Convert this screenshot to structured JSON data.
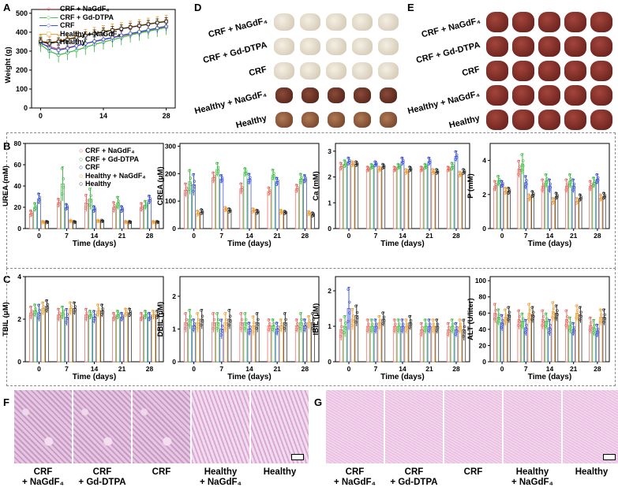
{
  "panels": {
    "A": "A",
    "B": "B",
    "C": "C",
    "D": "D",
    "E": "E",
    "F": "F",
    "G": "G"
  },
  "colors": {
    "crf_nagdf4": "#e8605a",
    "crf_gddtpa": "#34b83a",
    "crf": "#2b45d4",
    "healthy_nagdf4": "#f09a2a",
    "healthy": "#222222"
  },
  "legend_groups": [
    "CRF + NaGdF₄",
    "CRF + Gd-DTPA",
    "CRF",
    "Healthy + NaGdF₄",
    "Healthy"
  ],
  "chart_data": [
    {
      "id": "A",
      "type": "line",
      "ylabel": "Weight (g)",
      "xlabel": "",
      "xticks": [
        0,
        14,
        28
      ],
      "yticks": [
        0,
        100,
        200,
        300,
        400,
        500
      ],
      "xlim": [
        -2,
        30
      ],
      "ylim": [
        0,
        520
      ],
      "x": [
        0,
        2,
        4,
        6,
        8,
        10,
        12,
        14,
        16,
        18,
        20,
        22,
        24,
        26,
        28
      ],
      "series": [
        {
          "name": "CRF + NaGdF₄",
          "values": [
            340,
            325,
            310,
            318,
            330,
            340,
            350,
            360,
            370,
            380,
            390,
            400,
            410,
            420,
            430
          ],
          "err": 25
        },
        {
          "name": "CRF + Gd-DTPA",
          "values": [
            335,
            300,
            280,
            292,
            305,
            320,
            335,
            348,
            360,
            372,
            385,
            395,
            405,
            415,
            425
          ],
          "err": 40
        },
        {
          "name": "CRF",
          "values": [
            345,
            318,
            305,
            315,
            328,
            340,
            352,
            362,
            372,
            383,
            393,
            402,
            412,
            422,
            432
          ],
          "err": 25
        },
        {
          "name": "Healthy + NaGdF₄",
          "values": [
            355,
            345,
            355,
            365,
            375,
            385,
            395,
            405,
            413,
            420,
            428,
            436,
            444,
            452,
            460
          ],
          "err": 30
        },
        {
          "name": "Healthy",
          "values": [
            350,
            340,
            350,
            360,
            372,
            382,
            392,
            402,
            410,
            418,
            426,
            434,
            442,
            450,
            456
          ],
          "err": 20
        }
      ]
    },
    {
      "id": "UREA",
      "type": "bar",
      "ylabel": "UREA (mM)",
      "xlabel": "Time (days)",
      "categories": [
        "0",
        "7",
        "14",
        "21",
        "28"
      ],
      "yticks": [
        0,
        20,
        40,
        60,
        80
      ],
      "ylim": [
        0,
        80
      ],
      "series": [
        [
          14,
          24,
          24,
          20,
          20
        ],
        [
          20,
          42,
          28,
          24,
          22
        ],
        [
          28,
          20,
          18,
          18,
          27
        ],
        [
          6,
          7,
          7,
          6,
          6
        ],
        [
          6,
          6,
          7,
          6,
          6
        ]
      ],
      "err": [
        [
          3,
          4,
          8,
          5,
          4
        ],
        [
          4,
          16,
          10,
          6,
          4
        ],
        [
          5,
          3,
          3,
          3,
          4
        ],
        [
          1,
          1,
          1,
          1,
          1
        ],
        [
          1,
          1,
          1,
          1,
          1
        ]
      ]
    },
    {
      "id": "CREA",
      "type": "bar",
      "ylabel": "CREA (μM)",
      "xlabel": "Time (days)",
      "categories": [
        "0",
        "7",
        "14",
        "21",
        "28"
      ],
      "yticks": [
        0,
        100,
        200,
        300
      ],
      "ylim": [
        0,
        310
      ],
      "series": [
        [
          140,
          185,
          145,
          135,
          145
        ],
        [
          170,
          215,
          205,
          195,
          180
        ],
        [
          160,
          180,
          180,
          170,
          180
        ],
        [
          55,
          70,
          65,
          60,
          55
        ],
        [
          60,
          65,
          60,
          58,
          50
        ]
      ],
      "err": [
        [
          25,
          20,
          20,
          15,
          15
        ],
        [
          45,
          25,
          15,
          20,
          20
        ],
        [
          40,
          15,
          20,
          15,
          15
        ],
        [
          10,
          8,
          8,
          8,
          8
        ],
        [
          10,
          8,
          8,
          6,
          8
        ]
      ]
    },
    {
      "id": "Ca",
      "type": "bar",
      "ylabel": "Ca (mM)",
      "xlabel": "Time (days)",
      "categories": [
        "0",
        "7",
        "14",
        "21",
        "28"
      ],
      "yticks": [
        0,
        1,
        2,
        3
      ],
      "ylim": [
        0,
        3.3
      ],
      "series": [
        [
          2.4,
          2.3,
          2.3,
          2.3,
          2.3
        ],
        [
          2.5,
          2.4,
          2.4,
          2.4,
          2.4
        ],
        [
          2.6,
          2.5,
          2.6,
          2.6,
          2.8
        ],
        [
          2.5,
          2.3,
          2.2,
          2.2,
          2.1
        ],
        [
          2.5,
          2.4,
          2.3,
          2.2,
          2.2
        ]
      ],
      "err": [
        [
          0.15,
          0.1,
          0.1,
          0.1,
          0.1
        ],
        [
          0.15,
          0.1,
          0.1,
          0.1,
          0.15
        ],
        [
          0.15,
          0.1,
          0.15,
          0.15,
          0.2
        ],
        [
          0.1,
          0.1,
          0.1,
          0.1,
          0.1
        ],
        [
          0.1,
          0.1,
          0.1,
          0.1,
          0.1
        ]
      ]
    },
    {
      "id": "P",
      "type": "bar",
      "ylabel": "P (mM)",
      "xlabel": "Time (days)",
      "categories": [
        "0",
        "7",
        "14",
        "21",
        "28"
      ],
      "yticks": [
        0,
        2,
        4
      ],
      "ylim": [
        0,
        5
      ],
      "series": [
        [
          2.5,
          3.5,
          2.5,
          2.5,
          2.5
        ],
        [
          2.8,
          3.8,
          2.8,
          2.8,
          2.7
        ],
        [
          2.6,
          2.7,
          2.5,
          2.5,
          2.9
        ],
        [
          2.2,
          1.8,
          1.6,
          1.6,
          1.8
        ],
        [
          2.2,
          2.0,
          1.9,
          1.8,
          1.9
        ]
      ],
      "err": [
        [
          0.3,
          0.5,
          0.4,
          0.4,
          0.3
        ],
        [
          0.3,
          0.6,
          0.4,
          0.4,
          0.3
        ],
        [
          0.2,
          0.4,
          0.4,
          0.4,
          0.3
        ],
        [
          0.2,
          0.2,
          0.2,
          0.2,
          0.2
        ],
        [
          0.2,
          0.2,
          0.2,
          0.2,
          0.2
        ]
      ]
    },
    {
      "id": "TBIL",
      "type": "bar",
      "ylabel": "TBIL (μM)",
      "xlabel": "Time (days)",
      "categories": [
        "0",
        "7",
        "14",
        "21",
        "28"
      ],
      "yticks": [
        0,
        2,
        4
      ],
      "ylim": [
        0,
        4
      ],
      "series": [
        [
          2.3,
          2.2,
          2.2,
          2.1,
          2.1
        ],
        [
          2.4,
          2.3,
          2.2,
          2.2,
          2.2
        ],
        [
          2.3,
          2.1,
          2.1,
          2.1,
          2.1
        ],
        [
          2.5,
          2.5,
          2.4,
          2.3,
          2.2
        ],
        [
          2.6,
          2.5,
          2.4,
          2.3,
          2.2
        ]
      ],
      "err": [
        [
          0.3,
          0.3,
          0.3,
          0.2,
          0.2
        ],
        [
          0.3,
          0.3,
          0.2,
          0.2,
          0.2
        ],
        [
          0.4,
          0.4,
          0.3,
          0.2,
          0.2
        ],
        [
          0.3,
          0.3,
          0.3,
          0.2,
          0.2
        ],
        [
          0.3,
          0.3,
          0.3,
          0.2,
          0.2
        ]
      ]
    },
    {
      "id": "DBIL",
      "type": "bar",
      "ylabel": "DBIL (μM)",
      "xlabel": "Time (days)",
      "categories": [
        "0",
        "7",
        "14",
        "21",
        "28"
      ],
      "yticks": [
        0,
        1,
        2
      ],
      "ylim": [
        0,
        2.6
      ],
      "series": [
        [
          1.2,
          1.2,
          1.2,
          1.1,
          1.1
        ],
        [
          1.3,
          1.2,
          1.2,
          1.1,
          1.2
        ],
        [
          1.1,
          1.0,
          1.0,
          1.0,
          1.1
        ],
        [
          1.2,
          1.2,
          1.1,
          1.1,
          1.2
        ],
        [
          1.3,
          1.3,
          1.2,
          1.2,
          1.2
        ]
      ],
      "err": [
        [
          0.3,
          0.3,
          0.3,
          0.2,
          0.2
        ],
        [
          0.3,
          0.3,
          0.3,
          0.2,
          0.3
        ],
        [
          0.2,
          0.3,
          0.2,
          0.2,
          0.2
        ],
        [
          0.3,
          0.3,
          0.3,
          0.2,
          0.2
        ],
        [
          0.3,
          0.3,
          0.3,
          0.3,
          0.3
        ]
      ]
    },
    {
      "id": "IBIL",
      "type": "bar",
      "ylabel": "IBIL (μM)",
      "xlabel": "Time (days)",
      "categories": [
        "0",
        "7",
        "14",
        "21",
        "28"
      ],
      "yticks": [
        0,
        1,
        2
      ],
      "ylim": [
        0,
        2.4
      ],
      "series": [
        [
          0.9,
          1.0,
          1.0,
          0.9,
          0.9
        ],
        [
          1.0,
          1.0,
          1.0,
          1.0,
          1.0
        ],
        [
          1.5,
          1.0,
          1.0,
          1.0,
          0.9
        ],
        [
          1.2,
          1.1,
          1.0,
          1.0,
          1.0
        ],
        [
          1.3,
          1.2,
          1.1,
          1.0,
          0.9
        ]
      ],
      "err": [
        [
          0.3,
          0.2,
          0.2,
          0.2,
          0.2
        ],
        [
          0.3,
          0.2,
          0.2,
          0.2,
          0.2
        ],
        [
          0.6,
          0.2,
          0.2,
          0.2,
          0.2
        ],
        [
          0.3,
          0.2,
          0.2,
          0.2,
          0.2
        ],
        [
          0.3,
          0.2,
          0.2,
          0.2,
          0.3
        ]
      ]
    },
    {
      "id": "ALT",
      "type": "bar",
      "ylabel": "ALT (U/liter)",
      "xlabel": "Time (days)",
      "categories": [
        "0",
        "7",
        "14",
        "21",
        "28"
      ],
      "yticks": [
        0,
        20,
        40,
        60,
        80,
        100
      ],
      "ylim": [
        0,
        105
      ],
      "series": [
        [
          60,
          52,
          52,
          52,
          45
        ],
        [
          55,
          50,
          50,
          45,
          42
        ],
        [
          48,
          42,
          42,
          40,
          38
        ],
        [
          55,
          60,
          62,
          60,
          55
        ],
        [
          58,
          58,
          60,
          58,
          55
        ]
      ],
      "err": [
        [
          12,
          12,
          12,
          12,
          10
        ],
        [
          10,
          10,
          10,
          10,
          10
        ],
        [
          10,
          10,
          10,
          8,
          8
        ],
        [
          10,
          12,
          12,
          10,
          10
        ],
        [
          10,
          10,
          10,
          10,
          10
        ]
      ]
    }
  ],
  "D": {
    "rows": [
      "CRF + NaGdF₄",
      "CRF + Gd-DTPA",
      "CRF",
      "Healthy + NaGdF₄",
      "Healthy"
    ]
  },
  "E": {
    "rows": [
      "CRF + NaGdF₄",
      "CRF + Gd-DTPA",
      "CRF",
      "Healthy + NaGdF₄",
      "Healthy"
    ]
  },
  "F": {
    "captions": [
      "CRF\n+ NaGdF₄",
      "CRF\n+ Gd-DTPA",
      "CRF",
      "Healthy\n+ NaGdF₄",
      "Healthy"
    ]
  },
  "G": {
    "captions": [
      "CRF\n+ NaGdF₄",
      "CRF\n+ Gd-DTPA",
      "CRF",
      "Healthy\n+ NaGdF₄",
      "Healthy"
    ]
  }
}
